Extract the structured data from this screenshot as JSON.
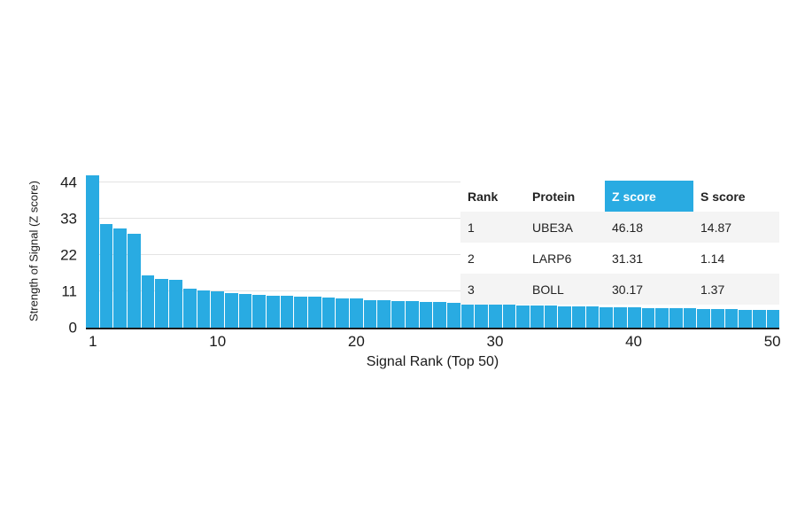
{
  "chart_data": {
    "type": "bar",
    "title": "",
    "xlabel": "Signal Rank (Top 50)",
    "ylabel": "Strength of Signal (Z score)",
    "ylim": [
      0,
      47
    ],
    "yticks": [
      0,
      11,
      22,
      33,
      44
    ],
    "xticks": [
      1,
      10,
      20,
      30,
      40,
      50
    ],
    "categories": [
      1,
      2,
      3,
      4,
      5,
      6,
      7,
      8,
      9,
      10,
      11,
      12,
      13,
      14,
      15,
      16,
      17,
      18,
      19,
      20,
      21,
      22,
      23,
      24,
      25,
      26,
      27,
      28,
      29,
      30,
      31,
      32,
      33,
      34,
      35,
      36,
      37,
      38,
      39,
      40,
      41,
      42,
      43,
      44,
      45,
      46,
      47,
      48,
      49,
      50
    ],
    "values": [
      46.18,
      31.31,
      30.17,
      28.6,
      15.8,
      14.9,
      14.6,
      11.9,
      11.4,
      11.0,
      10.6,
      10.3,
      10.0,
      9.8,
      9.7,
      9.5,
      9.4,
      9.2,
      9.0,
      8.8,
      8.4,
      8.2,
      8.1,
      8.0,
      7.9,
      7.7,
      7.5,
      7.4,
      7.2,
      7.0,
      6.9,
      6.8,
      6.7,
      6.6,
      6.5,
      6.4,
      6.4,
      6.3,
      6.2,
      6.1,
      6.0,
      5.9,
      5.9,
      5.8,
      5.7,
      5.6,
      5.6,
      5.5,
      5.5,
      5.4
    ],
    "legend": "none",
    "grid": "horizontal"
  },
  "table": {
    "headers": [
      "Rank",
      "Protein",
      "Z score",
      "S score"
    ],
    "rows": [
      [
        "1",
        "UBE3A",
        "46.18",
        "14.87"
      ],
      [
        "2",
        "LARP6",
        "31.31",
        "1.14"
      ],
      [
        "3",
        "BOLL",
        "30.17",
        "1.37"
      ]
    ]
  },
  "colors": {
    "bar": "#29abe2",
    "table_highlight": "#29abe2",
    "gridline": "#e3e3e3",
    "axis": "#1a1a1a"
  }
}
